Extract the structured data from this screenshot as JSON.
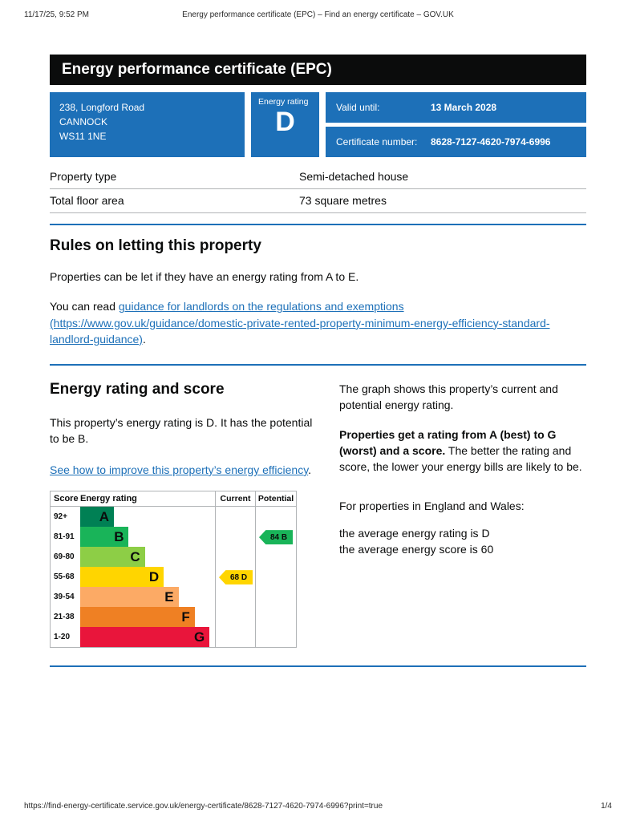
{
  "print_header": {
    "datetime": "11/17/25, 9:52 PM",
    "title": "Energy performance certificate (EPC) – Find an energy certificate – GOV.UK"
  },
  "banner": {
    "title": "Energy performance certificate (EPC)"
  },
  "summary": {
    "address_lines": [
      "238, Longford Road",
      "CANNOCK",
      "WS11 1NE"
    ],
    "energy_rating_label": "Energy rating",
    "energy_rating": "D",
    "valid_until_label": "Valid until:",
    "valid_until_value": "13 March 2028",
    "certificate_number_label": "Certificate number:",
    "certificate_number_value": "8628-7127-4620-7974-6996"
  },
  "property_details": {
    "rows": [
      {
        "label": "Property type",
        "value": "Semi-detached house"
      },
      {
        "label": "Total floor area",
        "value": "73 square metres"
      }
    ]
  },
  "letting_section": {
    "heading": "Rules on letting this property",
    "para1": "Properties can be let if they have an energy rating from A to E.",
    "para2_prefix": "You can read ",
    "para2_link": "guidance for landlords on the regulations and exemptions (https://www.gov.uk/guidance/domestic-private-rented-property-minimum-energy-efficiency-standard-landlord-guidance)",
    "para2_suffix": "."
  },
  "rating_section": {
    "heading": "Energy rating and score",
    "para1": "This property’s energy rating is D. It has the potential to be B.",
    "improve_link": "See how to improve this property’s energy efficiency",
    "improve_link_suffix": ".",
    "graph_para1": "The graph shows this property’s current and potential energy rating.",
    "graph_para2_bold": "Properties get a rating from A (best) to G (worst) and a score.",
    "graph_para2_rest": " The better the rating and score, the lower your energy bills are likely to be.",
    "graph_para3": "For properties in England and Wales:",
    "average_rating_line": "the average energy rating is D",
    "average_score_line": "the average energy score is 60"
  },
  "chart_data": {
    "type": "bar",
    "title": "Energy rating and score",
    "headers": {
      "score": "Score",
      "rating": "Energy rating",
      "current": "Current",
      "potential": "Potential"
    },
    "bands": [
      {
        "score_range": "92+",
        "letter": "A",
        "color": "#008054",
        "width_pct": 25
      },
      {
        "score_range": "81-91",
        "letter": "B",
        "color": "#19b459",
        "width_pct": 36
      },
      {
        "score_range": "69-80",
        "letter": "C",
        "color": "#8dce46",
        "width_pct": 48
      },
      {
        "score_range": "55-68",
        "letter": "D",
        "color": "#ffd500",
        "width_pct": 62
      },
      {
        "score_range": "39-54",
        "letter": "E",
        "color": "#fcaa65",
        "width_pct": 73
      },
      {
        "score_range": "21-38",
        "letter": "F",
        "color": "#ef8023",
        "width_pct": 85
      },
      {
        "score_range": "1-20",
        "letter": "G",
        "color": "#e9153b",
        "width_pct": 96
      }
    ],
    "current": {
      "score": 68,
      "letter": "D",
      "label": "68 D",
      "band_index": 3,
      "color": "#ffd500"
    },
    "potential": {
      "score": 84,
      "letter": "B",
      "label": "84 B",
      "band_index": 1,
      "color": "#19b459"
    }
  },
  "print_footer": {
    "url": "https://find-energy-certificate.service.gov.uk/energy-certificate/8628-7127-4620-7974-6996?print=true",
    "page_indicator": "1/4"
  },
  "colors": {
    "govuk_blue": "#1d70b8",
    "banner_black": "#0b0c0c",
    "border_grey": "#b1b4b6"
  }
}
